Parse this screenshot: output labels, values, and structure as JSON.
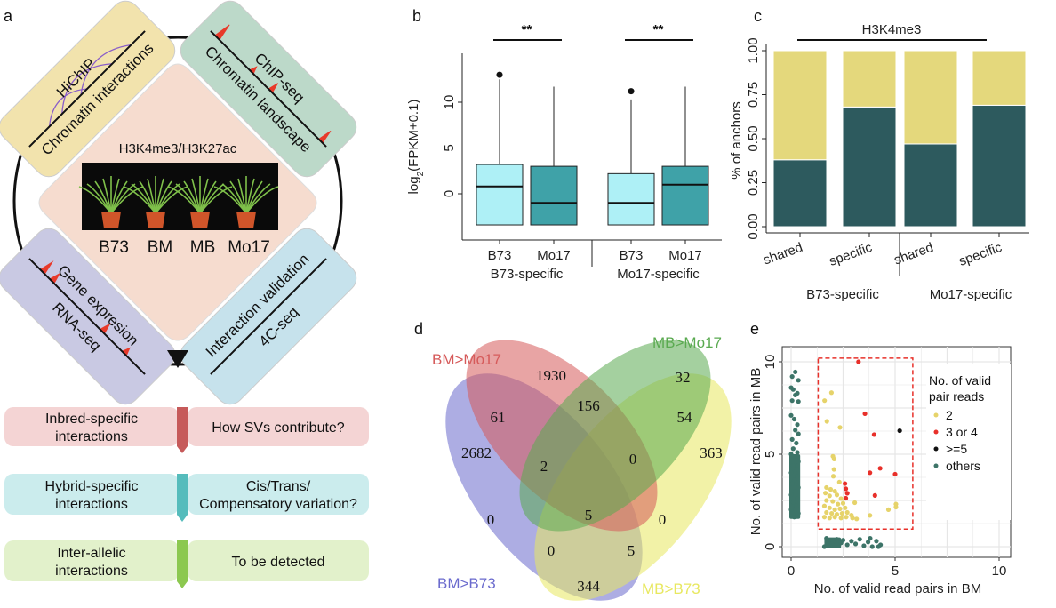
{
  "panel_labels": {
    "a": "a",
    "b": "b",
    "c": "c",
    "d": "d",
    "e": "e"
  },
  "panel_a": {
    "center_title": "H3K4me3/H3K27ac",
    "genotypes": [
      "B73",
      "BM",
      "MB",
      "Mo17"
    ],
    "methods": {
      "hichip": {
        "method": "HiChIP",
        "purpose": "Chromatin interactions",
        "color": "#f2e3ad"
      },
      "chipseq": {
        "method": "ChIP-seq",
        "purpose": "Chromatin landscape",
        "color": "#bcd9c9"
      },
      "rnaseq": {
        "method": "RNA-seq",
        "purpose": "Gene expresion",
        "color": "#c9c9e3"
      },
      "fourc": {
        "method": "4C-seq",
        "purpose": "Interaction validation",
        "color": "#c6e2ec"
      }
    },
    "flow": [
      {
        "left": [
          "Inbred-specific",
          "interactions"
        ],
        "right": [
          "How SVs contribute?"
        ],
        "box": "#f4d4d4",
        "arrow": "#c65a5a"
      },
      {
        "left": [
          "Hybrid-specific",
          "interactions"
        ],
        "right": [
          "Cis/Trans/",
          "Compensatory variation?"
        ],
        "box": "#cbeced",
        "arrow": "#55bcbc"
      },
      {
        "left": [
          "Inter-allelic",
          "interactions"
        ],
        "right": [
          "To be detected"
        ],
        "box": "#e2f1cb",
        "arrow": "#8cc850"
      }
    ]
  },
  "chart_data": [
    {
      "panel": "b",
      "type": "box",
      "ylabel_main": "log",
      "ylabel_sub": "2",
      "ylabel_rest": "(FPKM+0.1)",
      "yticks": [
        0,
        5,
        10
      ],
      "ylim": [
        -4,
        14
      ],
      "groups": [
        {
          "label": "B73-specific",
          "significance": "**",
          "boxes": [
            {
              "label": "B73",
              "color": "#aef0f6",
              "low": -3.4,
              "q1": -3.4,
              "median": 0.8,
              "q3": 3.2,
              "high": 12.5,
              "outliers": [
                13
              ]
            },
            {
              "label": "Mo17",
              "color": "#3fa2a8",
              "low": -3.4,
              "q1": -3.4,
              "median": -1,
              "q3": 3,
              "high": 11.7,
              "outliers": []
            }
          ]
        },
        {
          "label": "Mo17-specific",
          "significance": "**",
          "boxes": [
            {
              "label": "B73",
              "color": "#aef0f6",
              "low": -3.4,
              "q1": -3.4,
              "median": -1,
              "q3": 2.2,
              "high": 10.3,
              "outliers": [
                11.2
              ]
            },
            {
              "label": "Mo17",
              "color": "#3fa2a8",
              "low": -3.4,
              "q1": -3.4,
              "median": 1,
              "q3": 3,
              "high": 11.7,
              "outliers": []
            }
          ]
        }
      ]
    },
    {
      "panel": "c",
      "type": "bar",
      "stacked": true,
      "title": "H3K4me3",
      "ylabel": "% of anchors",
      "yticks": [
        "0.00",
        "0.25",
        "0.50",
        "0.75",
        "1.00"
      ],
      "ylim": [
        0,
        1
      ],
      "groups": [
        "B73-specific",
        "Mo17-specific"
      ],
      "categories": [
        "shared",
        "specific",
        "shared",
        "specific"
      ],
      "series": [
        {
          "color": "#2d5a5e",
          "values": [
            0.38,
            0.68,
            0.47,
            0.69
          ]
        },
        {
          "color": "#e4d87c",
          "values": [
            0.62,
            0.32,
            0.53,
            0.31
          ]
        }
      ]
    },
    {
      "panel": "e",
      "type": "scatter",
      "xlabel": "No. of valid read pairs in BM",
      "ylabel": "No. of valid read pairs in MB",
      "xlim": [
        -0.5,
        10.5
      ],
      "ylim": [
        -0.5,
        10.5
      ],
      "xticks": [
        0,
        5,
        10
      ],
      "yticks": [
        0,
        5,
        10
      ],
      "grid": true,
      "legend": {
        "title": [
          "No. of valid",
          "pair reads"
        ],
        "position": "right"
      },
      "highlight_box": {
        "x": [
          1.3,
          5.85
        ],
        "y": [
          0.95,
          10.2
        ],
        "color": "#e8302a"
      },
      "series": [
        {
          "name": "2",
          "color": "#e6d36a",
          "points": [
            [
              1.61,
              7.9
            ],
            [
              1.94,
              8.33
            ],
            [
              1.72,
              6.78
            ],
            [
              2.35,
              6.45
            ],
            [
              2.01,
              4.89
            ],
            [
              2.07,
              4.74
            ],
            [
              2.06,
              4.18
            ],
            [
              2.03,
              3.81
            ],
            [
              2.32,
              3.49
            ],
            [
              1.7,
              3.2
            ],
            [
              1.9,
              3.1
            ],
            [
              2.1,
              3.0
            ],
            [
              1.65,
              2.9
            ],
            [
              1.85,
              2.75
            ],
            [
              2.2,
              2.8
            ],
            [
              2.4,
              2.6
            ],
            [
              1.7,
              2.5
            ],
            [
              2.0,
              2.45
            ],
            [
              2.25,
              2.3
            ],
            [
              2.5,
              2.35
            ],
            [
              1.6,
              2.2
            ],
            [
              1.85,
              2.1
            ],
            [
              2.1,
              2.0
            ],
            [
              2.35,
              2.05
            ],
            [
              2.6,
              2.1
            ],
            [
              1.7,
              1.85
            ],
            [
              1.95,
              1.8
            ],
            [
              2.2,
              1.75
            ],
            [
              2.45,
              1.8
            ],
            [
              2.7,
              1.85
            ],
            [
              2.9,
              1.7
            ],
            [
              1.6,
              1.6
            ],
            [
              1.85,
              1.55
            ],
            [
              2.1,
              1.6
            ],
            [
              2.4,
              1.55
            ],
            [
              2.65,
              1.6
            ],
            [
              2.95,
              1.55
            ],
            [
              3.15,
              1.5
            ],
            [
              3.06,
              2.38
            ],
            [
              3.79,
              1.69
            ],
            [
              4.68,
              2.0
            ],
            [
              5.04,
              2.3
            ],
            [
              5.04,
              2.14
            ]
          ]
        },
        {
          "name": "3 or 4",
          "color": "#e8302a",
          "points": [
            [
              3.24,
              10.0
            ],
            [
              3.55,
              7.19
            ],
            [
              3.99,
              6.06
            ],
            [
              3.79,
              4.0
            ],
            [
              4.28,
              4.24
            ],
            [
              5.0,
              3.92
            ],
            [
              2.59,
              3.41
            ],
            [
              2.63,
              3.13
            ],
            [
              2.7,
              2.89
            ],
            [
              2.63,
              2.62
            ],
            [
              4.03,
              2.77
            ]
          ]
        },
        {
          "name": ">=5",
          "color": "#111111",
          "points": [
            [
              5.22,
              6.27
            ]
          ]
        },
        {
          "name": "others",
          "color": "#3d7468",
          "points": [
            [
              0.05,
              9.2
            ],
            [
              0.2,
              9.45
            ],
            [
              0.35,
              9.0
            ],
            [
              0.0,
              8.6
            ],
            [
              0.1,
              8.5
            ],
            [
              0.3,
              8.3
            ],
            [
              0.2,
              8.2
            ],
            [
              0.05,
              7.9
            ],
            [
              0.35,
              7.85
            ],
            [
              0.0,
              7.1
            ],
            [
              0.15,
              6.9
            ],
            [
              0.3,
              6.6
            ],
            [
              0.2,
              6.3
            ],
            [
              0.35,
              6.1
            ],
            [
              0.05,
              5.8
            ],
            [
              0.25,
              5.6
            ],
            [
              0.1,
              5.3
            ],
            [
              0.3,
              5.1
            ],
            [
              0.0,
              5.0
            ],
            [
              0.2,
              4.8
            ],
            [
              0.35,
              4.6
            ],
            [
              0.1,
              4.4
            ],
            [
              0.25,
              4.2
            ],
            [
              0.0,
              4.0
            ],
            [
              0.3,
              3.8
            ],
            [
              0.15,
              3.6
            ],
            [
              0.05,
              3.4
            ],
            [
              0.35,
              3.2
            ],
            [
              0.2,
              3.0
            ],
            [
              0.0,
              2.8
            ],
            [
              0.3,
              2.6
            ],
            [
              0.1,
              2.4
            ],
            [
              0.25,
              2.2
            ],
            [
              0.0,
              2.0
            ],
            [
              0.35,
              1.8
            ],
            [
              0.15,
              1.6
            ],
            [
              1.6,
              0.0
            ],
            [
              1.8,
              0.3
            ],
            [
              2.0,
              0.1
            ],
            [
              2.2,
              0.4
            ],
            [
              2.4,
              0.2
            ],
            [
              1.7,
              0.45
            ],
            [
              2.1,
              0.05
            ],
            [
              2.5,
              0.35
            ],
            [
              2.7,
              0.1
            ],
            [
              2.9,
              0.3
            ],
            [
              3.1,
              0.15
            ],
            [
              3.3,
              0.4
            ],
            [
              3.5,
              0.05
            ],
            [
              3.7,
              0.25
            ],
            [
              3.9,
              0.0
            ],
            [
              3.8,
              0.45
            ],
            [
              4.1,
              0.3
            ],
            [
              4.3,
              0.1
            ],
            [
              4.2,
              0.0
            ]
          ]
        }
      ]
    }
  ],
  "panel_d": {
    "sets": [
      {
        "name": "BM>Mo17",
        "color": "#d65a5a"
      },
      {
        "name": "MB>Mo17",
        "color": "#5aaa50"
      },
      {
        "name": "BM>B73",
        "color": "#6a6acd"
      },
      {
        "name": "MB>B73",
        "color": "#e8e860"
      }
    ],
    "counts": {
      "bm_mo17_only": "1930",
      "mb_mo17_only": "32",
      "bm_b73_only": "2682",
      "mb_b73_only": "363",
      "bm_mo17__bm_b73": "61",
      "bm_mo17__mb_mo17": "156",
      "mb_mo17__mb_b73": "54",
      "three_no_mb_b73": "2",
      "three_no_bm_b73": "0",
      "all": "5",
      "bm_b73__mb_mo17": "0",
      "bm_mo17__mb_b73": "0",
      "three_no_bm_mo17": "0",
      "three_no_mb_mo17": "5",
      "bm_b73__mb_b73": "344"
    }
  }
}
